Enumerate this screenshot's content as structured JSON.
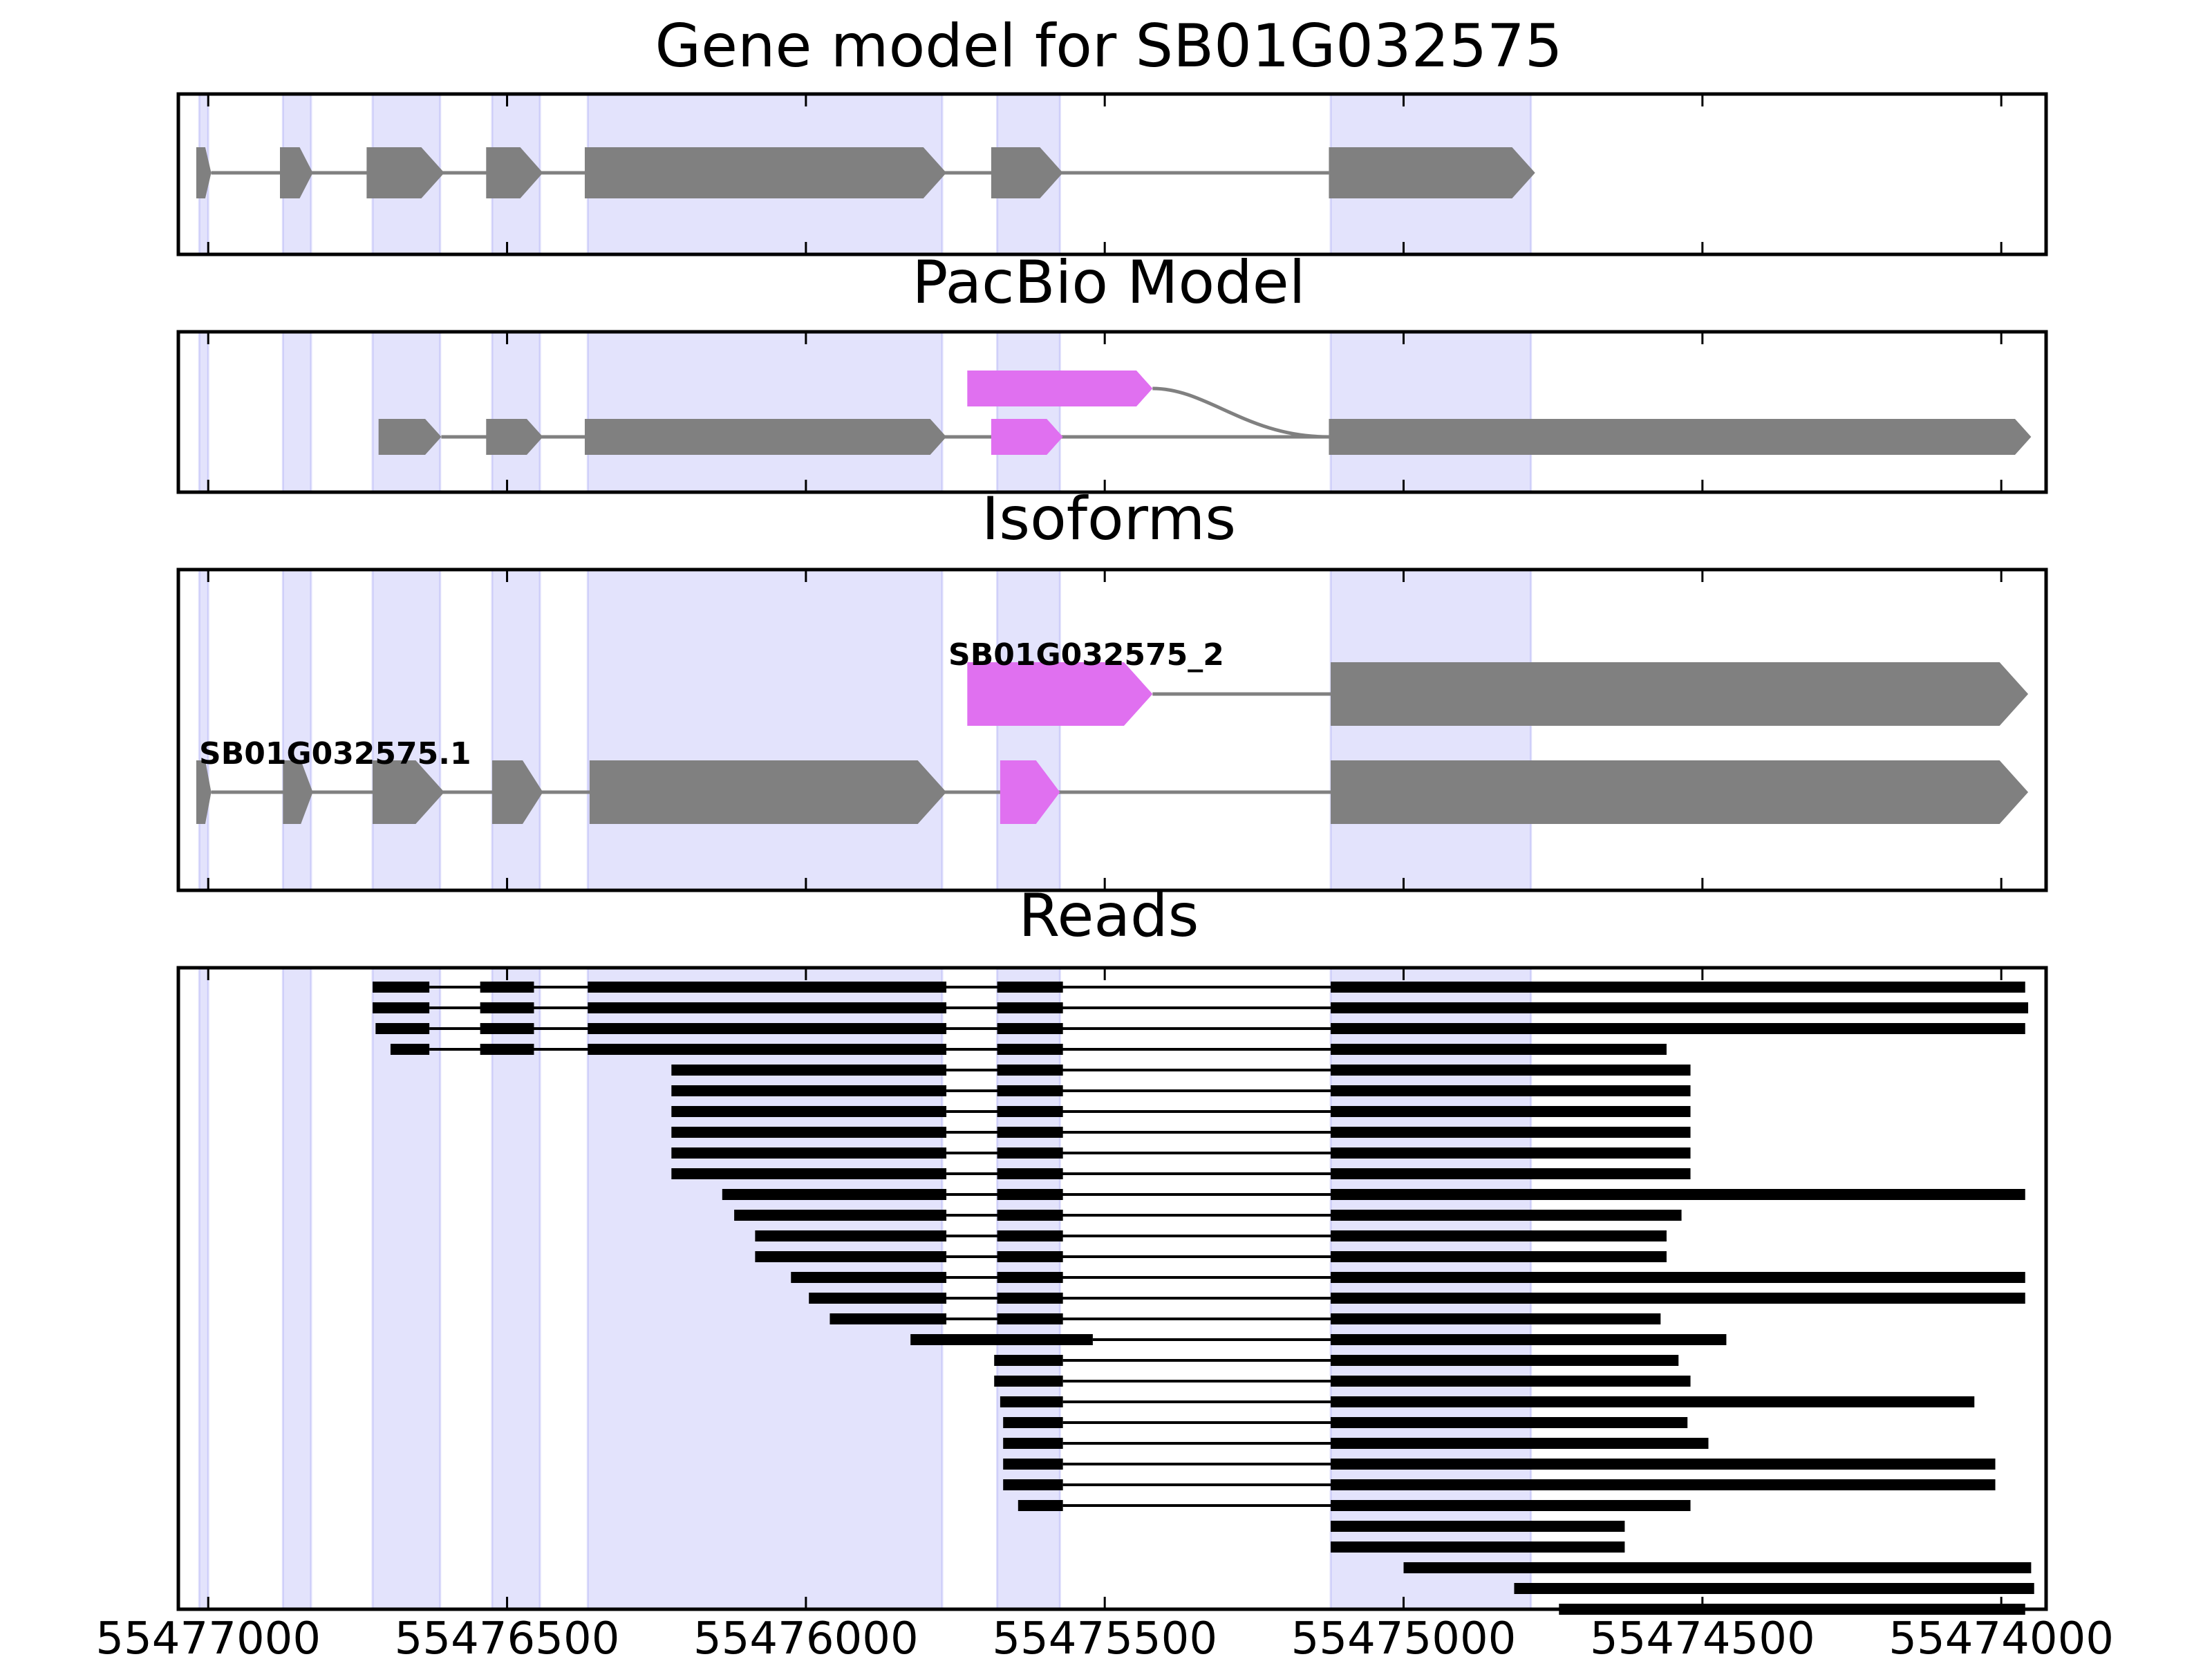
{
  "colors": {
    "exon_fill": "#808080",
    "intron_line": "#808080",
    "highlight_fill": "#8080f0",
    "alt_exon_fill": "#e070f0",
    "read_color": "#000000",
    "frame": "#000000"
  },
  "chart_data": {
    "type": "gene-structure",
    "xlim": [
      55477050,
      55473925
    ],
    "x_ticks": [
      55477000,
      55476500,
      55476000,
      55475500,
      55475000,
      55474500,
      55474000
    ],
    "x_tick_labels": [
      "55477000",
      "55476500",
      "55476000",
      "55475500",
      "55475000",
      "55474500",
      "55474000"
    ],
    "highlight_regions": [
      [
        55477015,
        55477000
      ],
      [
        55476875,
        55476828
      ],
      [
        55476725,
        55476612
      ],
      [
        55476525,
        55476445
      ],
      [
        55476365,
        55475772
      ],
      [
        55475680,
        55475575
      ],
      [
        55475122,
        55474787
      ]
    ],
    "panels": [
      {
        "id": "gene-model",
        "title": "Gene model for SB01G032575",
        "tracks": [
          {
            "name": "gene-model-track",
            "exons": [
              [
                55477020,
                55476995,
                "gray"
              ],
              [
                55476880,
                55476825,
                "gray"
              ],
              [
                55476735,
                55476605,
                "gray"
              ],
              [
                55476535,
                55476440,
                "gray"
              ],
              [
                55476370,
                55475765,
                "gray"
              ],
              [
                55475690,
                55475570,
                "gray"
              ],
              [
                55475125,
                55474780,
                "gray"
              ]
            ]
          }
        ]
      },
      {
        "id": "pacbio-model",
        "title": "PacBio Model",
        "tracks": [
          {
            "name": "pacbio-alt-track",
            "exons": [
              [
                55475730,
                55475420,
                "violet"
              ]
            ],
            "curve_to": "main-track",
            "curve_end": 55475125
          },
          {
            "name": "pacbio-main-track",
            "exons": [
              [
                55476715,
                55476610,
                "gray"
              ],
              [
                55476535,
                55476440,
                "gray"
              ],
              [
                55476370,
                55475765,
                "gray"
              ],
              [
                55475690,
                55475570,
                "violet"
              ],
              [
                55475125,
                55473950,
                "gray"
              ]
            ]
          }
        ]
      },
      {
        "id": "isoforms",
        "title": "Isoforms",
        "tracks": [
          {
            "name": "isoform-2",
            "label": "SB01G032575_2",
            "exons": [
              [
                55475730,
                55475420,
                "violet"
              ],
              [
                55475122,
                55473955,
                "gray"
              ]
            ]
          },
          {
            "name": "isoform-1",
            "label": "SB01G032575.1",
            "exons": [
              [
                55477020,
                55476995,
                "gray"
              ],
              [
                55476875,
                55476825,
                "gray"
              ],
              [
                55476725,
                55476605,
                "gray"
              ],
              [
                55476525,
                55476440,
                "gray"
              ],
              [
                55476362,
                55475765,
                "gray"
              ],
              [
                55475675,
                55475575,
                "violet"
              ],
              [
                55475122,
                55473955,
                "gray"
              ]
            ]
          }
        ]
      }
    ],
    "reads_panel": {
      "title": "Reads",
      "reads": [
        [
          [
            55476725,
            55476630
          ],
          [
            55476545,
            55476455
          ],
          [
            55476365,
            55475765
          ],
          [
            55475680,
            55475570
          ],
          [
            55475122,
            55473960
          ]
        ],
        [
          [
            55476725,
            55476630
          ],
          [
            55476545,
            55476455
          ],
          [
            55476365,
            55475765
          ],
          [
            55475680,
            55475570
          ],
          [
            55475122,
            55473955
          ]
        ],
        [
          [
            55476720,
            55476630
          ],
          [
            55476545,
            55476455
          ],
          [
            55476365,
            55475765
          ],
          [
            55475680,
            55475570
          ],
          [
            55475122,
            55473960
          ]
        ],
        [
          [
            55476695,
            55476630
          ],
          [
            55476545,
            55476455
          ],
          [
            55476365,
            55475765
          ],
          [
            55475680,
            55475570
          ],
          [
            55475122,
            55474560
          ]
        ],
        [
          [
            55476225,
            55475765
          ],
          [
            55475680,
            55475570
          ],
          [
            55475122,
            55474520
          ]
        ],
        [
          [
            55476225,
            55475765
          ],
          [
            55475680,
            55475570
          ],
          [
            55475122,
            55474520
          ]
        ],
        [
          [
            55476225,
            55475765
          ],
          [
            55475680,
            55475570
          ],
          [
            55475122,
            55474520
          ]
        ],
        [
          [
            55476225,
            55475765
          ],
          [
            55475680,
            55475570
          ],
          [
            55475122,
            55474520
          ]
        ],
        [
          [
            55476225,
            55475765
          ],
          [
            55475680,
            55475570
          ],
          [
            55475122,
            55474520
          ]
        ],
        [
          [
            55476225,
            55475765
          ],
          [
            55475680,
            55475570
          ],
          [
            55475122,
            55474520
          ]
        ],
        [
          [
            55476140,
            55475765
          ],
          [
            55475680,
            55475570
          ],
          [
            55475122,
            55473960
          ]
        ],
        [
          [
            55476120,
            55475765
          ],
          [
            55475680,
            55475570
          ],
          [
            55475122,
            55474535
          ]
        ],
        [
          [
            55476085,
            55475765
          ],
          [
            55475680,
            55475570
          ],
          [
            55475122,
            55474560
          ]
        ],
        [
          [
            55476085,
            55475765
          ],
          [
            55475680,
            55475570
          ],
          [
            55475122,
            55474560
          ]
        ],
        [
          [
            55476025,
            55475765
          ],
          [
            55475680,
            55475570
          ],
          [
            55475122,
            55473960
          ]
        ],
        [
          [
            55475995,
            55475765
          ],
          [
            55475680,
            55475570
          ],
          [
            55475122,
            55473960
          ]
        ],
        [
          [
            55475960,
            55475765
          ],
          [
            55475680,
            55475570
          ],
          [
            55475122,
            55474570
          ]
        ],
        [
          [
            55475825,
            55475520
          ],
          [
            55475122,
            55474460
          ]
        ],
        [
          [
            55475685,
            55475570
          ],
          [
            55475122,
            55474540
          ]
        ],
        [
          [
            55475685,
            55475570
          ],
          [
            55475122,
            55474520
          ]
        ],
        [
          [
            55475675,
            55475570
          ],
          [
            55475122,
            55474045
          ]
        ],
        [
          [
            55475670,
            55475570
          ],
          [
            55475122,
            55474525
          ]
        ],
        [
          [
            55475670,
            55475570
          ],
          [
            55475122,
            55474490
          ]
        ],
        [
          [
            55475670,
            55475570
          ],
          [
            55475122,
            55474010
          ]
        ],
        [
          [
            55475670,
            55475570
          ],
          [
            55475122,
            55474010
          ]
        ],
        [
          [
            55475645,
            55475570
          ],
          [
            55475122,
            55474520
          ]
        ],
        [
          [
            55475122,
            55474630
          ]
        ],
        [
          [
            55475122,
            55474630
          ]
        ],
        [
          [
            55475000,
            55473950
          ]
        ],
        [
          [
            55474815,
            55473945
          ]
        ],
        [
          [
            55474740,
            55473960
          ]
        ]
      ]
    }
  }
}
